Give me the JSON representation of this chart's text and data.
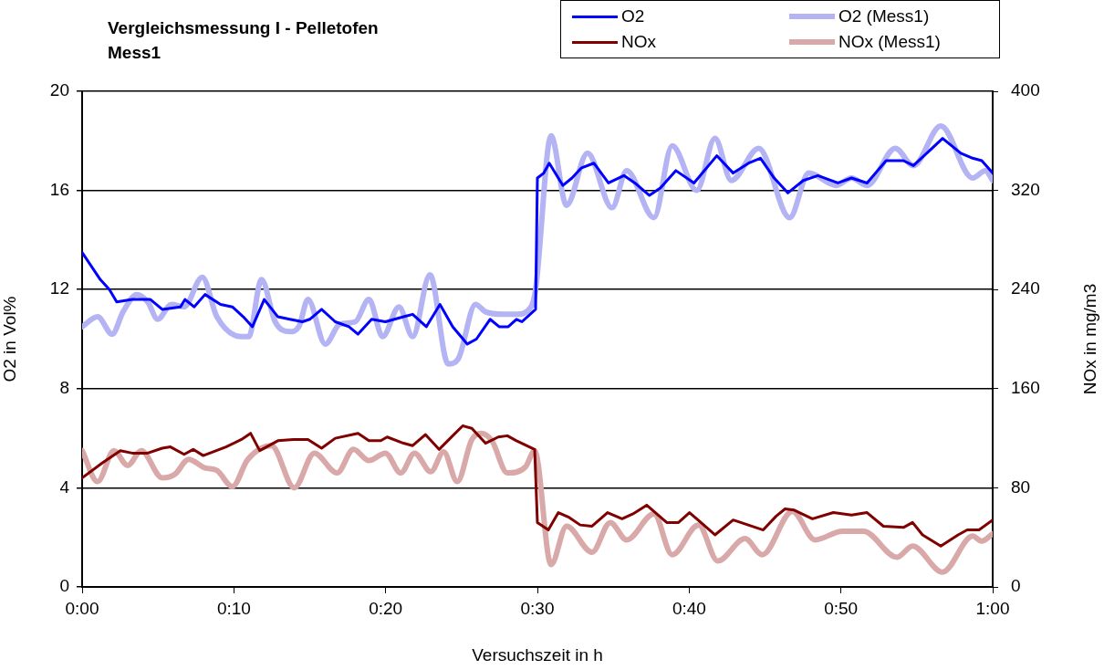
{
  "chart_data": {
    "type": "line",
    "title": "Vergleichsmessung I - Pelletofen\nMess1",
    "xlabel": "Versuchszeit in h",
    "ylabel": "O2 in Vol%",
    "y2label": "NOx in mg/m3",
    "xlim": [
      0,
      1
    ],
    "xticks": [
      {
        "value": 0,
        "label": "0:00"
      },
      {
        "value": 0.1667,
        "label": "0:10"
      },
      {
        "value": 0.3333,
        "label": "0:20"
      },
      {
        "value": 0.5,
        "label": "0:30"
      },
      {
        "value": 0.6667,
        "label": "0:40"
      },
      {
        "value": 0.8333,
        "label": "0:50"
      },
      {
        "value": 1,
        "label": "1:00"
      }
    ],
    "ylim": [
      0,
      20
    ],
    "yticks": [
      0,
      4,
      8,
      12,
      16,
      20
    ],
    "y2lim": [
      0,
      400
    ],
    "y2ticks": [
      0,
      80,
      160,
      240,
      320,
      400
    ],
    "grid": "y",
    "legend": "top right",
    "marker": "none",
    "series": [
      {
        "name": "O2",
        "color": "#0000ff",
        "x": [
          0,
          0.02,
          0.03,
          0.038,
          0.055,
          0.075,
          0.088,
          0.108,
          0.113,
          0.123,
          0.135,
          0.152,
          0.165,
          0.177,
          0.187,
          0.2,
          0.215,
          0.228,
          0.242,
          0.25,
          0.263,
          0.278,
          0.293,
          0.303,
          0.318,
          0.333,
          0.353,
          0.363,
          0.378,
          0.393,
          0.407,
          0.423,
          0.433,
          0.448,
          0.458,
          0.468,
          0.477,
          0.483,
          0.498,
          0.5,
          0.507,
          0.513,
          0.528,
          0.538,
          0.548,
          0.562,
          0.578,
          0.595,
          0.607,
          0.623,
          0.635,
          0.652,
          0.672,
          0.697,
          0.715,
          0.732,
          0.745,
          0.76,
          0.775,
          0.792,
          0.808,
          0.83,
          0.845,
          0.862,
          0.883,
          0.902,
          0.913,
          0.945,
          0.965,
          0.978,
          0.988,
          1
        ],
        "values": [
          13.5,
          12.4,
          12.0,
          11.5,
          11.6,
          11.6,
          11.2,
          11.3,
          11.6,
          11.3,
          11.8,
          11.4,
          11.3,
          10.9,
          10.5,
          11.6,
          10.9,
          10.8,
          10.7,
          10.8,
          11.2,
          10.7,
          10.5,
          10.2,
          10.8,
          10.7,
          10.9,
          11.0,
          10.5,
          11.4,
          10.5,
          9.8,
          10.0,
          10.8,
          10.5,
          10.5,
          10.8,
          10.7,
          11.2,
          16.5,
          16.7,
          17.1,
          16.2,
          16.5,
          16.9,
          17.1,
          16.3,
          16.6,
          16.3,
          15.8,
          16.1,
          16.8,
          16.3,
          17.4,
          16.7,
          17.1,
          17.3,
          16.5,
          15.9,
          16.4,
          16.6,
          16.3,
          16.5,
          16.3,
          17.2,
          17.2,
          17.0,
          18.1,
          17.5,
          17.3,
          17.2,
          16.7
        ]
      },
      {
        "name": "O2 (Mess1)",
        "color": "#b4b4f5",
        "x": [
          0,
          0.017,
          0.033,
          0.045,
          0.06,
          0.072,
          0.083,
          0.098,
          0.112,
          0.132,
          0.148,
          0.175,
          0.183,
          0.197,
          0.212,
          0.228,
          0.238,
          0.248,
          0.267,
          0.283,
          0.3,
          0.315,
          0.33,
          0.348,
          0.363,
          0.382,
          0.402,
          0.413,
          0.432,
          0.443,
          0.463,
          0.477,
          0.493,
          0.498,
          0.515,
          0.532,
          0.555,
          0.582,
          0.598,
          0.628,
          0.648,
          0.675,
          0.695,
          0.713,
          0.743,
          0.777,
          0.798,
          0.828,
          0.845,
          0.862,
          0.893,
          0.913,
          0.943,
          0.978,
          0.992,
          1
        ],
        "values": [
          10.5,
          10.9,
          10.2,
          11.1,
          11.8,
          11.5,
          10.8,
          11.4,
          11.3,
          12.5,
          10.9,
          10.1,
          10.1,
          12.4,
          10.7,
          10.3,
          10.5,
          11.6,
          9.8,
          10.6,
          10.7,
          11.6,
          10.1,
          11.3,
          10.1,
          12.6,
          9.0,
          9.2,
          11.4,
          11.1,
          11.0,
          11.0,
          11.3,
          12.0,
          18.2,
          15.4,
          17.5,
          15.3,
          16.8,
          14.9,
          17.8,
          16.0,
          18.1,
          16.4,
          17.7,
          14.9,
          16.7,
          16.2,
          16.5,
          16.2,
          17.7,
          17.0,
          18.6,
          16.5,
          16.8,
          16.4
        ]
      },
      {
        "name": "NOx",
        "color": "#800000",
        "axis": "y2",
        "x": [
          0,
          0.022,
          0.042,
          0.055,
          0.072,
          0.088,
          0.097,
          0.112,
          0.122,
          0.133,
          0.158,
          0.175,
          0.185,
          0.195,
          0.215,
          0.232,
          0.248,
          0.263,
          0.278,
          0.303,
          0.315,
          0.328,
          0.335,
          0.353,
          0.363,
          0.377,
          0.392,
          0.407,
          0.418,
          0.428,
          0.443,
          0.457,
          0.467,
          0.477,
          0.497,
          0.5,
          0.512,
          0.523,
          0.535,
          0.547,
          0.56,
          0.577,
          0.593,
          0.605,
          0.62,
          0.642,
          0.655,
          0.667,
          0.695,
          0.715,
          0.748,
          0.762,
          0.772,
          0.782,
          0.802,
          0.825,
          0.845,
          0.862,
          0.88,
          0.902,
          0.912,
          0.923,
          0.943,
          0.962,
          0.972,
          0.985,
          1
        ],
        "values": [
          88,
          100,
          110,
          108,
          108,
          112,
          113,
          107,
          111,
          106,
          113,
          119,
          124,
          110,
          118,
          119,
          119,
          112,
          120,
          124,
          118,
          118,
          121,
          116,
          114,
          123,
          111,
          122,
          130,
          128,
          116,
          121,
          122,
          118,
          111,
          52,
          46,
          60,
          56,
          50,
          49,
          60,
          55,
          59,
          66,
          52,
          52,
          60,
          42,
          54,
          46,
          57,
          63,
          62,
          55,
          60,
          58,
          60,
          49,
          48,
          52,
          42,
          33,
          42,
          46,
          46,
          54
        ]
      },
      {
        "name": "NOx (Mess1)",
        "color": "#d9a9a9",
        "axis": "y2",
        "x": [
          0,
          0.017,
          0.035,
          0.05,
          0.065,
          0.088,
          0.102,
          0.117,
          0.135,
          0.148,
          0.165,
          0.182,
          0.208,
          0.233,
          0.255,
          0.28,
          0.298,
          0.315,
          0.333,
          0.35,
          0.365,
          0.383,
          0.397,
          0.412,
          0.428,
          0.438,
          0.45,
          0.467,
          0.487,
          0.497,
          0.515,
          0.532,
          0.56,
          0.58,
          0.598,
          0.628,
          0.648,
          0.677,
          0.698,
          0.728,
          0.747,
          0.78,
          0.805,
          0.835,
          0.858,
          0.895,
          0.912,
          0.945,
          0.978,
          0.988,
          1
        ],
        "values": [
          110,
          85,
          110,
          98,
          110,
          88,
          91,
          103,
          96,
          94,
          81,
          103,
          114,
          80,
          108,
          92,
          111,
          102,
          108,
          92,
          108,
          93,
          109,
          85,
          119,
          124,
          118,
          92,
          97,
          110,
          18,
          49,
          28,
          52,
          38,
          59,
          26,
          50,
          21,
          39,
          26,
          61,
          38,
          45,
          45,
          24,
          33,
          12,
          41,
          37,
          43
        ]
      }
    ]
  }
}
